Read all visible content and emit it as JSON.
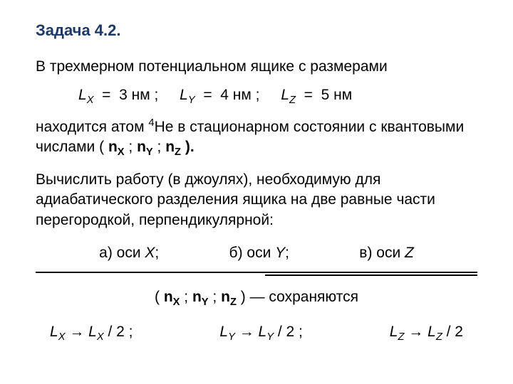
{
  "title": "Задача 4.2.",
  "para1": "В трехмерном потенциальном ящике с размерами",
  "dims": {
    "Lx": {
      "label": "L",
      "sub": "X",
      "eq": "=",
      "val": "3 нм ;"
    },
    "Ly": {
      "label": "L",
      "sub": "Y",
      "eq": "=",
      "val": "4 нм ;"
    },
    "Lz": {
      "label": "L",
      "sub": "Z",
      "eq": "=",
      "val": "5 нм"
    }
  },
  "para2_a": "находится атом ",
  "para2_isotope_sup": "4",
  "para2_isotope": "He",
  "para2_b": "  в  стационарном состоянии с квантовыми числами  ( ",
  "qn": {
    "nx": {
      "n": "n",
      "sub": "X"
    },
    "ny": {
      "n": "n",
      "sub": "Y"
    },
    "nz": {
      "n": "n",
      "sub": "Z"
    }
  },
  "sep": " ;  ",
  "close_paren": " ).",
  "para3": "Вычислить работу (в джоулях), необходимую для адиабатического разделения ящика на две равные части перегородкой, перпендикулярной:",
  "options": {
    "a": {
      "prefix": "а) оси ",
      "axis": "X",
      "suffix": ";"
    },
    "b": {
      "prefix": "б)  оси ",
      "axis": "Y",
      "suffix": ";"
    },
    "c": {
      "prefix": "в)  оси ",
      "axis": "Z",
      "suffix": ""
    }
  },
  "preserved": {
    "open": "( ",
    "close": " )",
    "dash": "  —  ",
    "text": "сохраняются"
  },
  "transforms": {
    "x": {
      "L": "L",
      "sub": "X",
      "arrow": " → ",
      "half": " / 2 ;"
    },
    "y": {
      "L": "L",
      "sub": "Y",
      "arrow": " → ",
      "half": " / 2 ;"
    },
    "z": {
      "L": "L",
      "sub": "Z",
      "arrow": " → ",
      "half": " / 2"
    }
  },
  "colors": {
    "title": "#1a3a6e",
    "text": "#000000",
    "bg": "#ffffff",
    "rule": "#000000"
  },
  "fonts": {
    "title_size_pt": 17,
    "body_size_pt": 16
  }
}
